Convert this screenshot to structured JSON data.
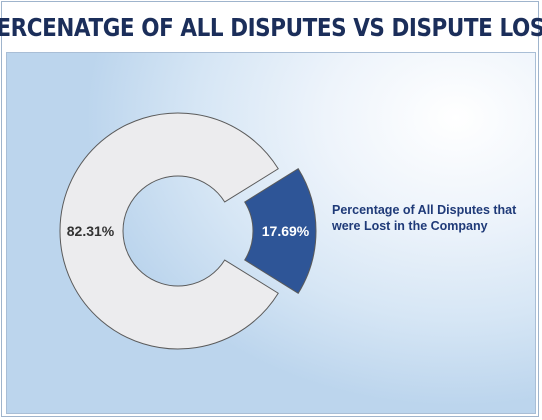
{
  "header": {
    "title": "PERCENATGE OF ALL DISPUTES VS DISPUTE LOST"
  },
  "colors": {
    "title": "#1b2e5a",
    "slice_lost": "#2e5597",
    "slice_rest": "#ececee",
    "slice_outline": "#5a5a5a",
    "label_lost": "#ffffff",
    "label_rest": "#333333",
    "legend_text": "#1f3a78"
  },
  "chart_data": {
    "type": "pie",
    "variant": "doughnut-exploded",
    "title": "PERCENATGE OF ALL DISPUTES VS DISPUTE LOST",
    "slices": [
      {
        "label": "Percentage of All Disputes that were  Lost in the Company",
        "value": 17.69,
        "display": "17.69%",
        "exploded": true
      },
      {
        "label": "",
        "value": 82.31,
        "display": "82.31%",
        "exploded": false
      }
    ],
    "legend": {
      "position": "right",
      "entries": [
        "Percentage of All Disputes that were  Lost in the Company"
      ]
    }
  }
}
